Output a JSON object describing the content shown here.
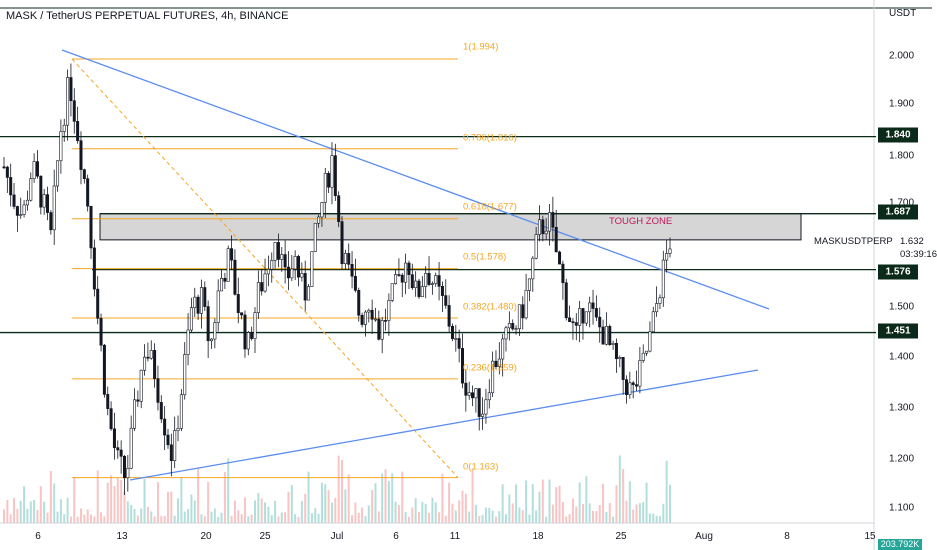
{
  "title": "MASK / TetherUS PERPETUAL FUTURES, 4h, BINANCE",
  "price_unit": "USDT",
  "chart_data": {
    "type": "candlestick",
    "symbol": "MASKUSDTPERP",
    "y_axis": {
      "ylim": [
        1.1,
        2.06
      ],
      "ticks": [
        "2.000",
        "1.900",
        "1.800",
        "1.700",
        "1.500",
        "1.400",
        "1.300",
        "1.200",
        "1.100"
      ]
    },
    "x_axis": {
      "ticks": [
        "6",
        "13",
        "20",
        "25",
        "Jul",
        "6",
        "11",
        "18",
        "25",
        "Aug",
        "8",
        "15"
      ]
    },
    "last_price": "1.632",
    "countdown": "03:39:16",
    "volume_badge": "203.792K",
    "price_badges": [
      "1.840",
      "1.687",
      "1.576",
      "1.451"
    ],
    "fib_levels": [
      {
        "label": "1(1.994)",
        "value": 1.994
      },
      {
        "label": "0.786(1.816)",
        "value": 1.816
      },
      {
        "label": "0.618(1.677)",
        "value": 1.677
      },
      {
        "label": "0.5(1.578)",
        "value": 1.578
      },
      {
        "label": "0.382(1.480)",
        "value": 1.48
      },
      {
        "label": "0.236(1.359)",
        "value": 1.359
      },
      {
        "label": "0(1.163)",
        "value": 1.163
      }
    ],
    "horizontal_levels": [
      1.84,
      1.576,
      1.451
    ],
    "zone": {
      "label": "TOUGH ZONE",
      "low": 1.635,
      "high": 1.687
    },
    "price_path": [
      1.78,
      1.72,
      1.68,
      1.78,
      1.72,
      1.64,
      1.85,
      1.95,
      1.83,
      1.7,
      1.48,
      1.3,
      1.2,
      1.16,
      1.3,
      1.42,
      1.38,
      1.28,
      1.2,
      1.35,
      1.5,
      1.52,
      1.42,
      1.55,
      1.6,
      1.5,
      1.42,
      1.52,
      1.58,
      1.65,
      1.55,
      1.6,
      1.52,
      1.62,
      1.72,
      1.8,
      1.62,
      1.55,
      1.48,
      1.52,
      1.45,
      1.5,
      1.55,
      1.6,
      1.52,
      1.58,
      1.54,
      1.5,
      1.44,
      1.36,
      1.32,
      1.3,
      1.38,
      1.42,
      1.45,
      1.48,
      1.55,
      1.65,
      1.68,
      1.6,
      1.5,
      1.44,
      1.52,
      1.47,
      1.45,
      1.4,
      1.36,
      1.33,
      1.38,
      1.45,
      1.55,
      1.632
    ]
  }
}
